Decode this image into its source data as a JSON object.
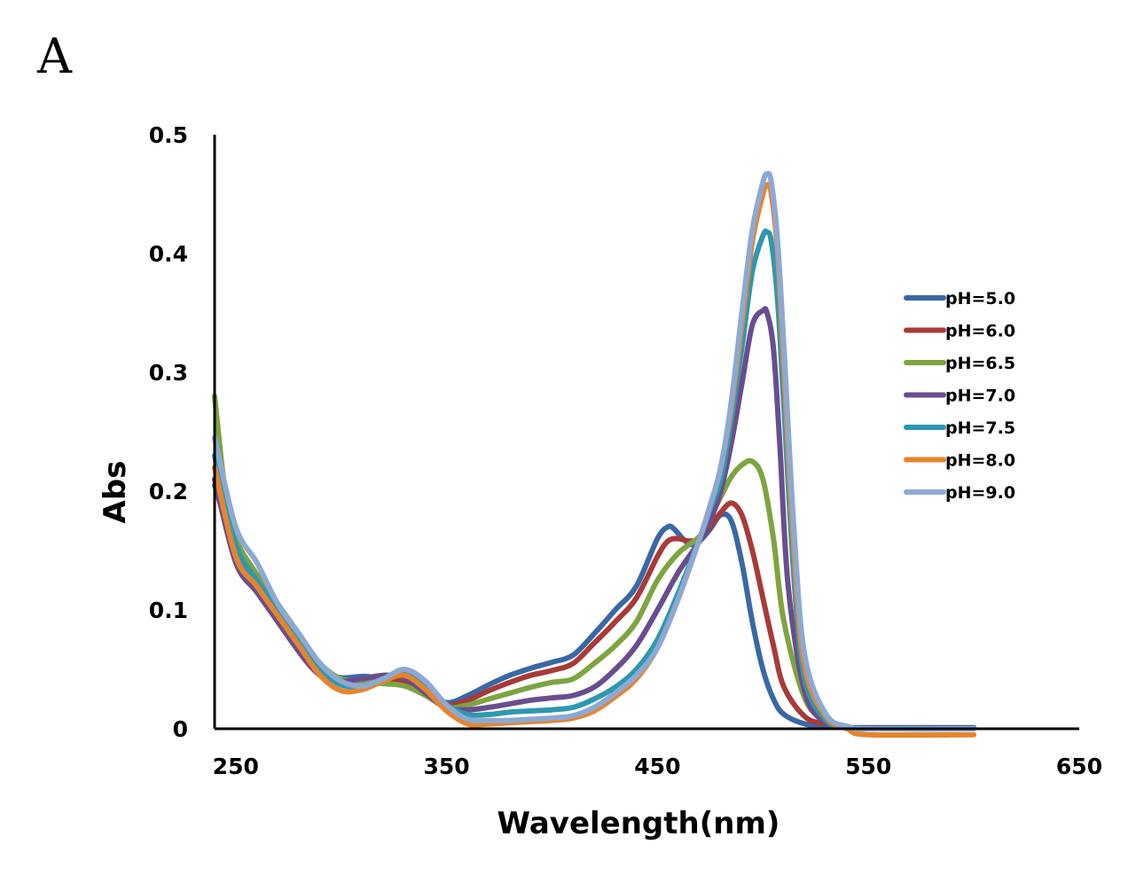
{
  "panel_label": "A",
  "chart_data": {
    "type": "line",
    "title": "",
    "xlabel": "Wavelength(nm)",
    "ylabel": "Abs",
    "xlim": [
      240,
      650
    ],
    "ylim": [
      0,
      0.5
    ],
    "xticks": [
      250,
      350,
      450,
      550,
      650
    ],
    "yticks": [
      0,
      0.1,
      0.2,
      0.3,
      0.4,
      0.5
    ],
    "ytick_labels": [
      "0",
      "0.1",
      "0.2",
      "0.3",
      "0.4",
      "0.5"
    ],
    "grid": false,
    "legend_position": "right",
    "series": [
      {
        "name": "pH=5.0",
        "color": "#3A68A6",
        "x": [
          240,
          250,
          260,
          270,
          280,
          290,
          300,
          310,
          320,
          330,
          340,
          350,
          360,
          370,
          380,
          390,
          400,
          410,
          420,
          430,
          440,
          450,
          455,
          458,
          462,
          466,
          470,
          475,
          480,
          485,
          490,
          495,
          500,
          505,
          510,
          520,
          530,
          540,
          550,
          600
        ],
        "y": [
          0.205,
          0.15,
          0.12,
          0.095,
          0.07,
          0.048,
          0.043,
          0.044,
          0.043,
          0.043,
          0.033,
          0.022,
          0.028,
          0.037,
          0.045,
          0.051,
          0.056,
          0.062,
          0.08,
          0.1,
          0.12,
          0.16,
          0.17,
          0.168,
          0.16,
          0.155,
          0.158,
          0.168,
          0.18,
          0.175,
          0.14,
          0.09,
          0.05,
          0.025,
          0.012,
          0.004,
          0.002,
          0.001,
          0.001,
          0.001
        ]
      },
      {
        "name": "pH=6.0",
        "color": "#A83A38",
        "x": [
          240,
          250,
          260,
          270,
          280,
          290,
          300,
          310,
          320,
          330,
          340,
          350,
          360,
          370,
          380,
          390,
          400,
          410,
          420,
          430,
          440,
          450,
          455,
          460,
          465,
          470,
          475,
          480,
          485,
          490,
          495,
          500,
          505,
          510,
          520,
          530,
          540,
          550,
          600
        ],
        "y": [
          0.21,
          0.15,
          0.12,
          0.095,
          0.065,
          0.045,
          0.038,
          0.04,
          0.042,
          0.04,
          0.03,
          0.02,
          0.024,
          0.032,
          0.039,
          0.045,
          0.049,
          0.055,
          0.072,
          0.09,
          0.11,
          0.145,
          0.158,
          0.16,
          0.158,
          0.16,
          0.17,
          0.182,
          0.19,
          0.18,
          0.15,
          0.11,
          0.07,
          0.035,
          0.01,
          0.004,
          0.001,
          0.0,
          0.0
        ]
      },
      {
        "name": "pH=6.5",
        "color": "#7EA440",
        "x": [
          240,
          245,
          250,
          260,
          270,
          280,
          290,
          300,
          310,
          320,
          330,
          340,
          350,
          360,
          370,
          380,
          390,
          400,
          410,
          420,
          430,
          440,
          450,
          460,
          470,
          475,
          480,
          485,
          490,
          495,
          500,
          505,
          510,
          520,
          530,
          540,
          550,
          600
        ],
        "y": [
          0.28,
          0.2,
          0.16,
          0.13,
          0.105,
          0.08,
          0.055,
          0.042,
          0.04,
          0.038,
          0.036,
          0.028,
          0.018,
          0.02,
          0.025,
          0.03,
          0.035,
          0.039,
          0.042,
          0.055,
          0.07,
          0.09,
          0.125,
          0.148,
          0.162,
          0.178,
          0.195,
          0.212,
          0.222,
          0.225,
          0.21,
          0.16,
          0.09,
          0.025,
          0.007,
          0.002,
          0.0,
          0.0
        ]
      },
      {
        "name": "pH=7.0",
        "color": "#6A4D8E",
        "x": [
          240,
          250,
          260,
          270,
          280,
          290,
          300,
          310,
          320,
          330,
          340,
          350,
          360,
          370,
          380,
          390,
          400,
          410,
          420,
          430,
          440,
          450,
          460,
          470,
          475,
          480,
          485,
          490,
          495,
          500,
          502,
          505,
          508,
          512,
          520,
          530,
          540,
          550,
          600
        ],
        "y": [
          0.21,
          0.14,
          0.115,
          0.09,
          0.065,
          0.045,
          0.04,
          0.042,
          0.045,
          0.043,
          0.03,
          0.018,
          0.016,
          0.018,
          0.021,
          0.024,
          0.026,
          0.028,
          0.035,
          0.05,
          0.07,
          0.1,
          0.132,
          0.158,
          0.175,
          0.2,
          0.24,
          0.29,
          0.34,
          0.352,
          0.35,
          0.32,
          0.24,
          0.12,
          0.03,
          0.005,
          0.001,
          0.0,
          0.0
        ]
      },
      {
        "name": "pH=7.5",
        "color": "#2E98AF",
        "x": [
          240,
          250,
          260,
          270,
          280,
          290,
          300,
          310,
          320,
          330,
          340,
          350,
          360,
          370,
          380,
          390,
          400,
          410,
          420,
          430,
          440,
          450,
          460,
          470,
          475,
          480,
          485,
          490,
          495,
          500,
          502,
          504,
          507,
          510,
          515,
          520,
          530,
          540,
          550,
          600
        ],
        "y": [
          0.23,
          0.155,
          0.125,
          0.1,
          0.075,
          0.05,
          0.037,
          0.036,
          0.042,
          0.048,
          0.035,
          0.02,
          0.012,
          0.012,
          0.014,
          0.015,
          0.016,
          0.018,
          0.025,
          0.035,
          0.05,
          0.075,
          0.115,
          0.16,
          0.185,
          0.21,
          0.26,
          0.32,
          0.385,
          0.415,
          0.418,
          0.41,
          0.36,
          0.27,
          0.12,
          0.04,
          0.007,
          0.001,
          0.0,
          0.0
        ]
      },
      {
        "name": "pH=8.0",
        "color": "#E6842E",
        "x": [
          240,
          250,
          260,
          270,
          280,
          290,
          300,
          310,
          320,
          330,
          340,
          350,
          360,
          370,
          380,
          390,
          400,
          410,
          420,
          430,
          440,
          450,
          460,
          470,
          475,
          480,
          485,
          490,
          495,
          500,
          502,
          504,
          507,
          510,
          515,
          520,
          530,
          540,
          550,
          600
        ],
        "y": [
          0.22,
          0.145,
          0.12,
          0.095,
          0.07,
          0.045,
          0.032,
          0.033,
          0.04,
          0.045,
          0.033,
          0.015,
          0.004,
          0.004,
          0.005,
          0.006,
          0.007,
          0.009,
          0.015,
          0.027,
          0.042,
          0.068,
          0.11,
          0.16,
          0.188,
          0.22,
          0.27,
          0.34,
          0.41,
          0.45,
          0.458,
          0.45,
          0.4,
          0.3,
          0.14,
          0.05,
          0.01,
          0.0,
          -0.005,
          -0.005
        ]
      },
      {
        "name": "pH=9.0",
        "color": "#8CA9D4",
        "x": [
          240,
          250,
          260,
          270,
          280,
          290,
          300,
          310,
          320,
          330,
          340,
          350,
          360,
          370,
          380,
          390,
          400,
          410,
          420,
          430,
          440,
          450,
          460,
          470,
          475,
          480,
          485,
          490,
          495,
          500,
          502,
          504,
          507,
          510,
          515,
          520,
          530,
          540,
          550,
          600
        ],
        "y": [
          0.245,
          0.17,
          0.14,
          0.105,
          0.08,
          0.055,
          0.04,
          0.036,
          0.042,
          0.05,
          0.04,
          0.02,
          0.008,
          0.007,
          0.007,
          0.008,
          0.009,
          0.011,
          0.018,
          0.03,
          0.045,
          0.068,
          0.11,
          0.16,
          0.188,
          0.22,
          0.275,
          0.35,
          0.42,
          0.46,
          0.467,
          0.46,
          0.41,
          0.32,
          0.16,
          0.06,
          0.012,
          0.002,
          0.0,
          0.0
        ]
      }
    ]
  }
}
